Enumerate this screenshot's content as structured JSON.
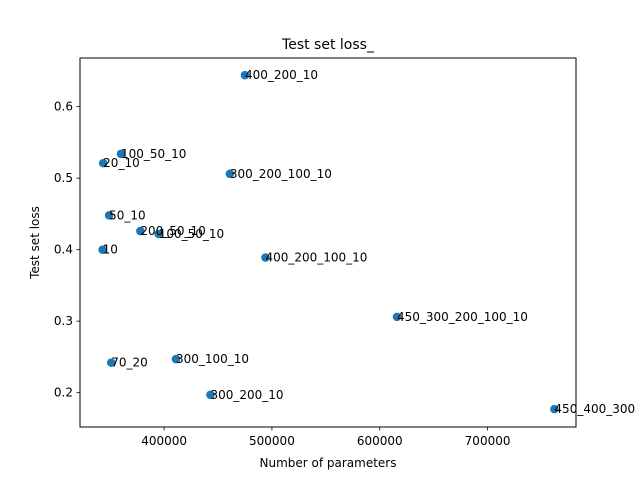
{
  "chart_data": {
    "type": "scatter",
    "title": "Test set loss_",
    "xlabel": "Number of parameters",
    "ylabel": "Test set loss",
    "xlim": [
      322000,
      782000
    ],
    "ylim": [
      0.152,
      0.668
    ],
    "xticks": [
      400000,
      500000,
      600000,
      700000
    ],
    "xtick_labels": [
      "400000",
      "500000",
      "600000",
      "700000"
    ],
    "yticks": [
      0.2,
      0.3,
      0.4,
      0.5,
      0.6
    ],
    "ytick_labels": [
      "0.2",
      "0.3",
      "0.4",
      "0.5",
      "0.6"
    ],
    "grid": false,
    "marker_color": "#1f77b4",
    "points": [
      {
        "label": "400_200_10",
        "x": 475000,
        "y": 0.644
      },
      {
        "label": "100_50_10",
        "x": 360000,
        "y": 0.534
      },
      {
        "label": "20_10",
        "x": 343500,
        "y": 0.521
      },
      {
        "label": "300_200_100_10",
        "x": 461000,
        "y": 0.506
      },
      {
        "label": "50_10",
        "x": 349000,
        "y": 0.448
      },
      {
        "label": "200_50_10",
        "x": 378000,
        "y": 0.426
      },
      {
        "label": "100_50_10",
        "x": 395000,
        "y": 0.422
      },
      {
        "label": "10",
        "x": 343000,
        "y": 0.4
      },
      {
        "label": "400_200_100_10",
        "x": 494000,
        "y": 0.389
      },
      {
        "label": "450_300_200_100_10",
        "x": 616000,
        "y": 0.306
      },
      {
        "label": "300_100_10",
        "x": 411000,
        "y": 0.247
      },
      {
        "label": "70_20",
        "x": 351000,
        "y": 0.242
      },
      {
        "label": "300_200_10",
        "x": 443000,
        "y": 0.197
      },
      {
        "label": "450_400_300",
        "x": 762000,
        "y": 0.177
      }
    ]
  }
}
